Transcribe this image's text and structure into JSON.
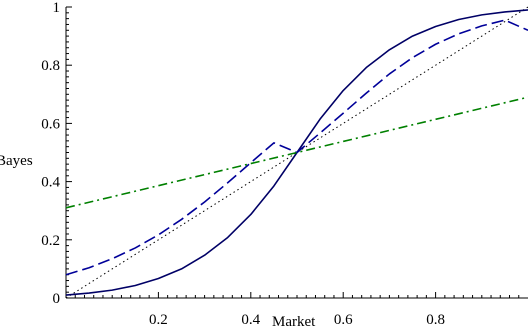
{
  "chart_data": {
    "type": "line",
    "title": "",
    "xlabel": "Market",
    "ylabel": "Bayes",
    "xlim": [
      0,
      1
    ],
    "ylim": [
      0,
      1
    ],
    "x_ticks": [
      {
        "value": 0.2,
        "label": "0.2"
      },
      {
        "value": 0.4,
        "label": "0.4"
      },
      {
        "value": 0.6,
        "label": "0.6"
      },
      {
        "value": 0.8,
        "label": "0.8"
      }
    ],
    "y_ticks": [
      {
        "value": 0,
        "label": "0"
      },
      {
        "value": 0.2,
        "label": "0.2"
      },
      {
        "value": 0.4,
        "label": "0.4"
      },
      {
        "value": 0.6,
        "label": "0.6"
      },
      {
        "value": 0.8,
        "label": "0.8"
      },
      {
        "value": 1,
        "label": "1"
      }
    ],
    "grid": false,
    "legend": "none",
    "series": [
      {
        "style": "dotted",
        "color": "#000000",
        "x": [
          0,
          1
        ],
        "y": [
          0,
          1
        ]
      },
      {
        "style": "solid",
        "color": "#000066",
        "x": [
          0,
          0.05,
          0.1,
          0.15,
          0.2,
          0.25,
          0.3,
          0.35,
          0.4,
          0.45,
          0.5,
          0.55,
          0.6,
          0.65,
          0.7,
          0.75,
          0.8,
          0.85,
          0.9,
          0.95,
          1
        ],
        "y": [
          0.01,
          0.017,
          0.027,
          0.043,
          0.067,
          0.1,
          0.147,
          0.208,
          0.287,
          0.385,
          0.5,
          0.615,
          0.713,
          0.792,
          0.853,
          0.9,
          0.933,
          0.957,
          0.973,
          0.983,
          0.99
        ]
      },
      {
        "style": "dashed",
        "color": "#000099",
        "x": [
          0,
          0.05,
          0.1,
          0.15,
          0.2,
          0.25,
          0.3,
          0.35,
          0.4,
          0.45,
          0.5,
          0.55,
          0.6,
          0.65,
          0.7,
          0.75,
          0.8,
          0.85,
          0.9,
          0.95,
          1
        ],
        "y": [
          0.08,
          0.104,
          0.135,
          0.172,
          0.217,
          0.27,
          0.33,
          0.396,
          0.465,
          0.533,
          0.5,
          0.567,
          0.635,
          0.704,
          0.77,
          0.826,
          0.872,
          0.908,
          0.935,
          0.955,
          0.92
        ]
      },
      {
        "style": "dash-dot",
        "color": "#008000",
        "x": [
          0,
          1
        ],
        "y": [
          0.31,
          0.69
        ]
      }
    ]
  }
}
